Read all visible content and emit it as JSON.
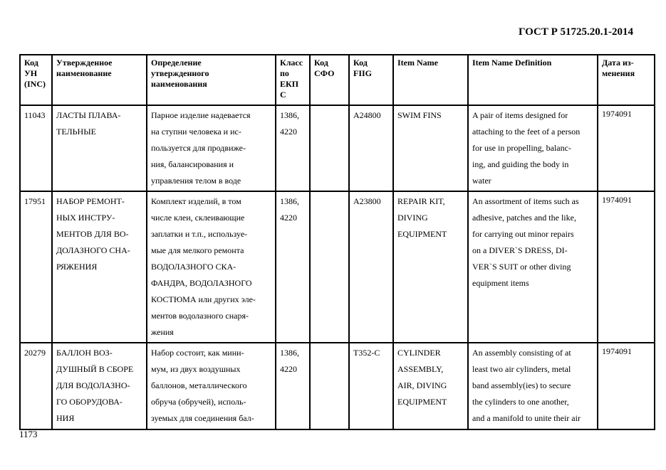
{
  "document_title": "ГОСТ Р 51725.20.1-2014",
  "page_number": "1173",
  "table": {
    "headers": [
      [
        "Код",
        "УН",
        "(INC)"
      ],
      [
        "Утвержденное",
        "наименование"
      ],
      [
        "Определение",
        "утвержденного",
        "наименования"
      ],
      [
        "Класс",
        "по",
        "ЕКП",
        "С"
      ],
      [
        "Код",
        "СФО"
      ],
      [
        "Код",
        "FIIG"
      ],
      [
        "Item Name"
      ],
      [
        "Item Name Definition"
      ],
      [
        "Дата из-",
        "менения"
      ]
    ],
    "rows": [
      {
        "inc": [
          "11043"
        ],
        "name": [
          "ЛАСТЫ ПЛАВА-",
          "ТЕЛЬНЫЕ"
        ],
        "definition": [
          "Парное изделие надевается",
          "на ступни человека и ис-",
          "пользуется для продвиже-",
          "ния, балансирования и",
          "управления телом в воде"
        ],
        "class": [
          "1386,",
          "4220"
        ],
        "sfo": [],
        "fiig": [
          "A24800"
        ],
        "item_name": [
          "SWIM FINS"
        ],
        "item_definition": [
          "A pair of items designed for",
          "attaching to the feet of a person",
          "for use in propelling, balanc-",
          "ing, and guiding the body in",
          "water"
        ],
        "date": [
          "1974091"
        ]
      },
      {
        "inc": [
          "17951"
        ],
        "name": [
          "НАБОР РЕМОНТ-",
          "НЫХ ИНСТРУ-",
          "МЕНТОВ ДЛЯ ВО-",
          "ДОЛАЗНОГО СНА-",
          "РЯЖЕНИЯ"
        ],
        "definition": [
          "Комплект изделий, в том",
          "числе клеи, склеивающие",
          "заплатки и т.п., используе-",
          "мые для мелкого ремонта",
          "ВОДОЛАЗНОГО СКА-",
          "ФАНДРА, ВОДОЛАЗНОГО",
          "КОСТЮМА или других эле-",
          "ментов водолазного снаря-",
          "жения"
        ],
        "class": [
          "1386,",
          "4220"
        ],
        "sfo": [],
        "fiig": [
          "A23800"
        ],
        "item_name": [
          "REPAIR KIT,",
          "DIVING",
          "EQUIPMENT"
        ],
        "item_definition": [
          "An assortment of items such as",
          "adhesive, patches and the like,",
          "for carrying out minor repairs",
          "on a DIVER`S DRESS, DI-",
          "VER`S SUIT or other diving",
          "equipment items"
        ],
        "date": [
          "1974091"
        ]
      },
      {
        "inc": [
          "20279"
        ],
        "name": [
          "БАЛЛОН ВОЗ-",
          "ДУШНЫЙ В СБОРЕ",
          "ДЛЯ ВОДОЛАЗНО-",
          "ГО ОБОРУДОВА-",
          "НИЯ"
        ],
        "definition": [
          "Набор состоит, как мини-",
          "мум, из двух воздушных",
          "баллонов, металлического",
          "обруча (обручей), исполь-",
          "зуемых для соединения бал-"
        ],
        "class": [
          "1386,",
          "4220"
        ],
        "sfo": [],
        "fiig": [
          "T352-C"
        ],
        "item_name": [
          "CYLINDER",
          "ASSEMBLY,",
          "AIR, DIVING",
          "EQUIPMENT"
        ],
        "item_definition": [
          "An assembly consisting of at",
          "least two air cylinders, metal",
          "band assembly(ies) to secure",
          "the cylinders to one another,",
          "and a manifold to unite their air"
        ],
        "date": [
          "1974091"
        ]
      }
    ]
  }
}
